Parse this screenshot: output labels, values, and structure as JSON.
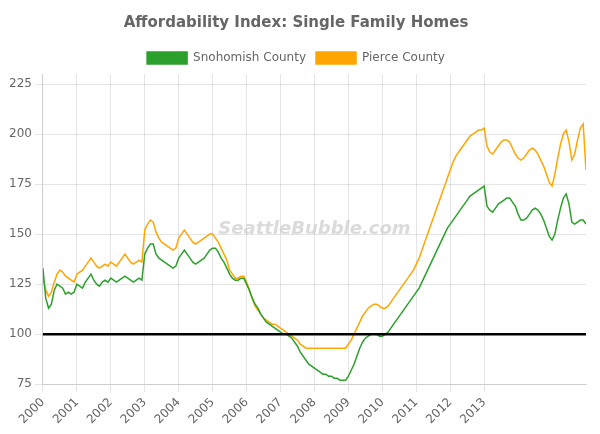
{
  "chart_data": {
    "type": "line",
    "title": "Affordability Index: Single Family Homes",
    "annotations": [
      {
        "text": "SeattleBubble.com"
      }
    ],
    "reference_line": 100,
    "x": [
      2000,
      2000.0833,
      2000.1667,
      2000.25,
      2000.3333,
      2000.4167,
      2000.5,
      2000.5833,
      2000.6667,
      2000.75,
      2000.8333,
      2000.9167,
      2001,
      2001.0833,
      2001.1667,
      2001.25,
      2001.3333,
      2001.4167,
      2001.5,
      2001.5833,
      2001.6667,
      2001.75,
      2001.8333,
      2001.9167,
      2002,
      2002.0833,
      2002.1667,
      2002.25,
      2002.3333,
      2002.4167,
      2002.5,
      2002.5833,
      2002.6667,
      2002.75,
      2002.8333,
      2002.9167,
      2003,
      2003.0833,
      2003.1667,
      2003.25,
      2003.3333,
      2003.4167,
      2003.5,
      2003.5833,
      2003.6667,
      2003.75,
      2003.8333,
      2003.9167,
      2004,
      2004.0833,
      2004.1667,
      2004.25,
      2004.3333,
      2004.4167,
      2004.5,
      2004.5833,
      2004.6667,
      2004.75,
      2004.8333,
      2004.9167,
      2005,
      2005.0833,
      2005.1667,
      2005.25,
      2005.3333,
      2005.4167,
      2005.5,
      2005.5833,
      2005.6667,
      2005.75,
      2005.8333,
      2005.9167,
      2006,
      2006.0833,
      2006.1667,
      2006.25,
      2006.3333,
      2006.4167,
      2006.5,
      2006.5833,
      2006.6667,
      2006.75,
      2006.8333,
      2006.9167,
      2007,
      2007.0833,
      2007.1667,
      2007.25,
      2007.3333,
      2007.4167,
      2007.5,
      2007.5833,
      2007.6667,
      2007.75,
      2007.8333,
      2007.9167,
      2008,
      2008.0833,
      2008.1667,
      2008.25,
      2008.3333,
      2008.4167,
      2008.5,
      2008.5833,
      2008.6667,
      2008.75,
      2008.8333,
      2008.9167,
      2009,
      2009.0833,
      2009.1667,
      2009.25,
      2009.3333,
      2009.4167,
      2009.5,
      2009.5833,
      2009.6667,
      2009.75,
      2009.8333,
      2009.9167,
      2010,
      2010.0833,
      2010.1667,
      2010.25,
      2010.3333,
      2010.4167,
      2010.5,
      2010.5833,
      2010.6667,
      2010.75,
      2010.8333,
      2010.9167,
      2011,
      2011.0833,
      2011.1667,
      2011.25,
      2011.3333,
      2011.4167,
      2011.5,
      2011.5833,
      2011.6667,
      2011.75,
      2011.8333,
      2011.9167,
      2012,
      2012.0833,
      2012.1667,
      2012.25,
      2012.3333,
      2012.4167,
      2012.5,
      2012.5833,
      2012.6667,
      2012.75,
      2012.8333,
      2012.9167,
      2013,
      2013.0833,
      2013.1667,
      2013.25,
      2013.3333,
      2013.4167,
      2013.5,
      2013.5833,
      2013.6667,
      2013.75,
      2013.8333,
      2013.9167,
      2014,
      2014.0833,
      2014.1667,
      2014.25,
      2014.3333,
      2014.4167,
      2014.5,
      2014.5833,
      2014.6667,
      2014.75,
      2014.8333,
      2014.9167,
      2015,
      2015.0833,
      2015.1667,
      2015.25,
      2015.3333,
      2015.4167,
      2015.5,
      2015.5833,
      2015.6667,
      2015.75,
      2015.8333,
      2015.9167,
      2016
    ],
    "series": [
      {
        "name": "Snohomish County",
        "color": "#2ca02c",
        "values": [
          133,
          118,
          113,
          115,
          122,
          125,
          124,
          123,
          120,
          121,
          120,
          121,
          125,
          124,
          123,
          126,
          128,
          130,
          127,
          125,
          124,
          126,
          127,
          126,
          128,
          127,
          126,
          127,
          128,
          129,
          128,
          127,
          126,
          127,
          128,
          127,
          140,
          143,
          145,
          145,
          140,
          138,
          137,
          136,
          135,
          134,
          133,
          134,
          138,
          140,
          142,
          140,
          138,
          136,
          135,
          136,
          137,
          138,
          140,
          142,
          143,
          143,
          141,
          138,
          136,
          133,
          130,
          128,
          127,
          127,
          128,
          128,
          125,
          122,
          118,
          115,
          113,
          110,
          108,
          106,
          105,
          104,
          103,
          102,
          101,
          100,
          100,
          99,
          98,
          96,
          94,
          91,
          89,
          87,
          85,
          84,
          83,
          82,
          81,
          80,
          80,
          79,
          79,
          78,
          78,
          77,
          77,
          77,
          79,
          82,
          85,
          89,
          93,
          96,
          98,
          99,
          100,
          100,
          100,
          99,
          99,
          100,
          101,
          103,
          105,
          107,
          109,
          111,
          113,
          115,
          117,
          119,
          121,
          123,
          126,
          129,
          132,
          135,
          138,
          141,
          144,
          147,
          150,
          153,
          155,
          157,
          159,
          161,
          163,
          165,
          167,
          169,
          170,
          171,
          172,
          173,
          174,
          164,
          162,
          161,
          163,
          165,
          166,
          167,
          168,
          168,
          166,
          164,
          160,
          157,
          157,
          158,
          160,
          162,
          163,
          162,
          160,
          157,
          153,
          149,
          147,
          150,
          157,
          163,
          168,
          170,
          165,
          156,
          155,
          156,
          157,
          157,
          155
        ]
      },
      {
        "name": "Pierce County",
        "color": "#ffa500",
        "values": [
          128,
          122,
          119,
          121,
          126,
          130,
          132,
          131,
          129,
          128,
          127,
          126,
          130,
          131,
          132,
          134,
          136,
          138,
          136,
          134,
          133,
          134,
          135,
          134,
          136,
          135,
          134,
          136,
          138,
          140,
          138,
          136,
          135,
          136,
          137,
          136,
          152,
          155,
          157,
          156,
          151,
          148,
          146,
          145,
          144,
          143,
          142,
          143,
          148,
          150,
          152,
          150,
          148,
          146,
          145,
          146,
          147,
          148,
          149,
          150,
          150,
          148,
          146,
          143,
          140,
          137,
          132,
          130,
          128,
          128,
          129,
          129,
          126,
          122,
          118,
          114,
          112,
          110,
          108,
          107,
          106,
          105,
          105,
          104,
          103,
          102,
          101,
          100,
          99,
          98,
          97,
          95,
          94,
          93,
          93,
          93,
          93,
          93,
          93,
          93,
          93,
          93,
          93,
          93,
          93,
          93,
          93,
          93,
          95,
          97,
          100,
          103,
          106,
          109,
          111,
          113,
          114,
          115,
          115,
          114,
          113,
          113,
          114,
          116,
          118,
          120,
          122,
          124,
          126,
          128,
          130,
          132,
          135,
          138,
          142,
          146,
          150,
          154,
          158,
          162,
          166,
          170,
          174,
          178,
          182,
          186,
          189,
          191,
          193,
          195,
          197,
          199,
          200,
          201,
          202,
          202,
          203,
          194,
          191,
          190,
          192,
          194,
          196,
          197,
          197,
          196,
          193,
          190,
          188,
          187,
          188,
          190,
          192,
          193,
          192,
          190,
          187,
          184,
          180,
          176,
          174,
          180,
          188,
          195,
          200,
          202,
          196,
          187,
          190,
          197,
          203,
          205,
          182
        ]
      }
    ],
    "xlim": [
      2000,
      2016
    ],
    "xticks": [
      2000,
      2001,
      2002,
      2003,
      2004,
      2005,
      2006,
      2007,
      2008,
      2009,
      2010,
      2011,
      2012,
      2013
    ],
    "ylim": [
      75,
      230
    ],
    "yticks": [
      75,
      100,
      125,
      150,
      175,
      200,
      225
    ],
    "grid": true,
    "legend": "top"
  }
}
